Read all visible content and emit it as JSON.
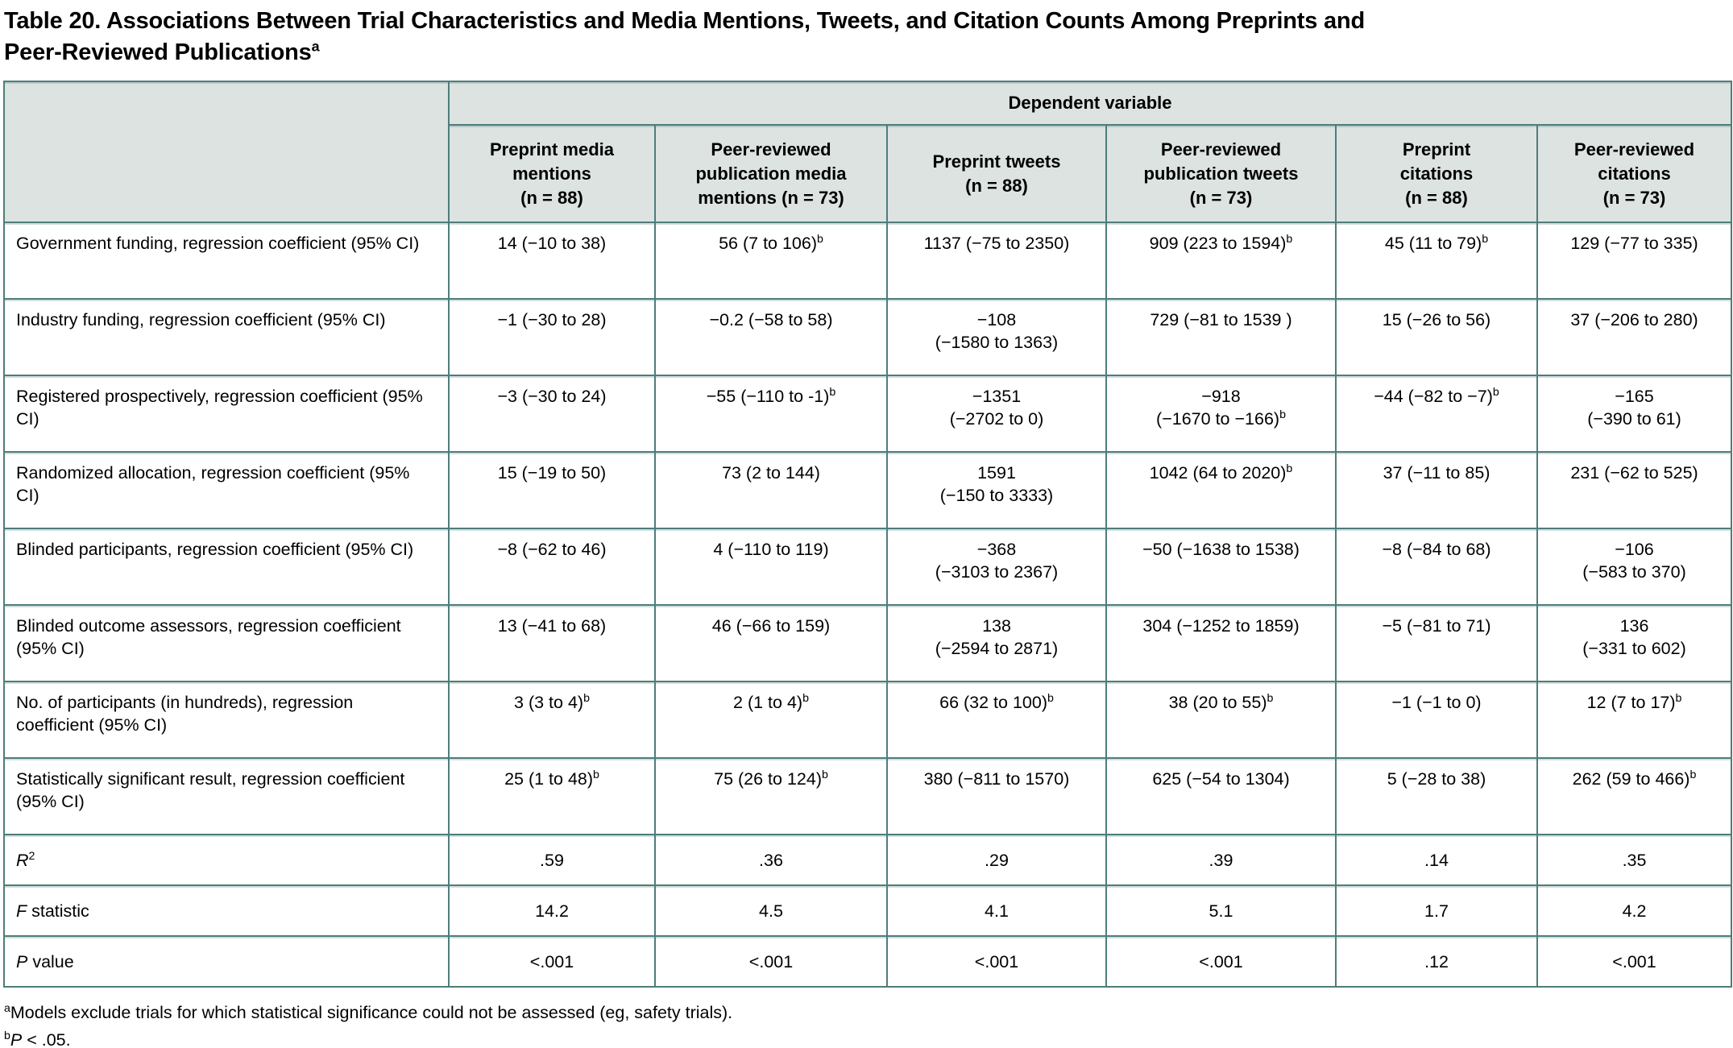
{
  "colors": {
    "border": "#4d7d7b",
    "header_bg": "#dce3e1"
  },
  "title": {
    "line1": "Table 20. Associations Between Trial Characteristics and Media Mentions, Tweets, and Citation Counts Among Preprints and",
    "line2": "Peer-Reviewed Publications",
    "sup": "a"
  },
  "table": {
    "dependent_variable_label": "Dependent variable",
    "columns": [
      "Preprint media\nmentions\n(n = 88)",
      "Peer-reviewed\npublication media\nmentions (n = 73)",
      "Preprint tweets\n(n = 88)",
      "Peer-reviewed\npublication tweets\n(n = 73)",
      "Preprint\ncitations\n(n = 88)",
      "Peer-reviewed\ncitations\n(n = 73)"
    ],
    "rows": [
      {
        "type": "data",
        "label": {
          "text": "Government funding, regression coefficient (95% CI)"
        },
        "cells": [
          {
            "text": "14 (−10 to 38)"
          },
          {
            "text": "56 (7 to 106)",
            "sup": "b"
          },
          {
            "text": "1137 (−75 to 2350)"
          },
          {
            "text": "909 (223 to 1594)",
            "sup": "b"
          },
          {
            "text": "45 (11 to 79)",
            "sup": "b"
          },
          {
            "text": "129 (−77 to 335)"
          }
        ]
      },
      {
        "type": "data",
        "label": {
          "text": "Industry funding, regression coefficient (95% CI)"
        },
        "cells": [
          {
            "text": "−1 (−30 to 28)"
          },
          {
            "text": "−0.2 (−58 to 58)"
          },
          {
            "text": "−108\n(−1580 to 1363)"
          },
          {
            "text": "729 (−81 to 1539 )"
          },
          {
            "text": "15 (−26 to 56)"
          },
          {
            "text": "37 (−206 to 280)"
          }
        ]
      },
      {
        "type": "data",
        "label": {
          "text": "Registered prospectively, regression coefficient (95% CI)"
        },
        "cells": [
          {
            "text": "−3 (−30 to 24)"
          },
          {
            "text": "−55 (−110 to -1)",
            "sup": "b"
          },
          {
            "text": "−1351\n(−2702 to 0)"
          },
          {
            "text": "−918\n(−1670 to −166)",
            "sup": "b"
          },
          {
            "text": "−44 (−82 to −7)",
            "sup": "b"
          },
          {
            "text": "−165\n(−390 to 61)"
          }
        ]
      },
      {
        "type": "data",
        "label": {
          "text": "Randomized allocation, regression coefficient (95% CI)"
        },
        "cells": [
          {
            "text": "15 (−19 to 50)"
          },
          {
            "text": "73 (2 to 144)"
          },
          {
            "text": "1591\n(−150 to 3333)"
          },
          {
            "text": "1042 (64 to 2020)",
            "sup": "b"
          },
          {
            "text": "37 (−11 to 85)"
          },
          {
            "text": "231 (−62 to 525)"
          }
        ]
      },
      {
        "type": "data",
        "label": {
          "text": "Blinded participants, regression coefficient (95% CI)"
        },
        "cells": [
          {
            "text": "−8 (−62 to 46)"
          },
          {
            "text": "4 (−110 to 119)"
          },
          {
            "text": "−368\n(−3103 to 2367)"
          },
          {
            "text": "−50 (−1638 to 1538)"
          },
          {
            "text": "−8 (−84 to 68)"
          },
          {
            "text": "−106\n(−583 to 370)"
          }
        ]
      },
      {
        "type": "data",
        "label": {
          "text": "Blinded outcome assessors, regression coefficient (95% CI)"
        },
        "cells": [
          {
            "text": "13 (−41 to 68)"
          },
          {
            "text": "46 (−66 to 159)"
          },
          {
            "text": "138\n(−2594 to 2871)"
          },
          {
            "text": "304 (−1252 to 1859)"
          },
          {
            "text": "−5 (−81 to 71)"
          },
          {
            "text": "136\n(−331 to 602)"
          }
        ]
      },
      {
        "type": "data",
        "label": {
          "text": "No. of participants (in hundreds), regression coefficient (95% CI)"
        },
        "cells": [
          {
            "text": "3 (3 to 4)",
            "sup": "b"
          },
          {
            "text": "2 (1 to 4)",
            "sup": "b"
          },
          {
            "text": "66 (32 to 100)",
            "sup": "b"
          },
          {
            "text": "38 (20 to 55)",
            "sup": "b"
          },
          {
            "text": "−1 (−1 to 0)"
          },
          {
            "text": "12 (7 to 17)",
            "sup": "b"
          }
        ]
      },
      {
        "type": "data",
        "label": {
          "text": "Statistically significant result, regression coefficient (95% CI)"
        },
        "cells": [
          {
            "text": "25 (1 to 48)",
            "sup": "b"
          },
          {
            "text": "75 (26 to 124)",
            "sup": "b"
          },
          {
            "text": "380 (−811 to 1570)"
          },
          {
            "text": "625 (−54 to 1304)"
          },
          {
            "text": "5 (−28 to 38)"
          },
          {
            "text": "262 (59 to 466)",
            "sup": "b"
          }
        ]
      },
      {
        "type": "stat",
        "label": {
          "italic": "R",
          "sup": "2",
          "text": ""
        },
        "cells": [
          {
            "text": ".59"
          },
          {
            "text": ".36"
          },
          {
            "text": ".29"
          },
          {
            "text": ".39"
          },
          {
            "text": ".14"
          },
          {
            "text": ".35"
          }
        ]
      },
      {
        "type": "stat",
        "label": {
          "italic": "F",
          "text": " statistic"
        },
        "cells": [
          {
            "text": "14.2"
          },
          {
            "text": "4.5"
          },
          {
            "text": "4.1"
          },
          {
            "text": "5.1"
          },
          {
            "text": "1.7"
          },
          {
            "text": "4.2"
          }
        ]
      },
      {
        "type": "stat",
        "label": {
          "italic": "P",
          "text": " value"
        },
        "cells": [
          {
            "text": "<.001"
          },
          {
            "text": "<.001"
          },
          {
            "text": "<.001"
          },
          {
            "text": "<.001"
          },
          {
            "text": ".12"
          },
          {
            "text": "<.001"
          }
        ]
      }
    ]
  },
  "footnotes": [
    {
      "sup": "a",
      "italic": "",
      "text": "Models exclude trials for which statistical significance could not be assessed (eg, safety trials)."
    },
    {
      "sup": "b",
      "italic": "P",
      "text": " < .05."
    }
  ]
}
